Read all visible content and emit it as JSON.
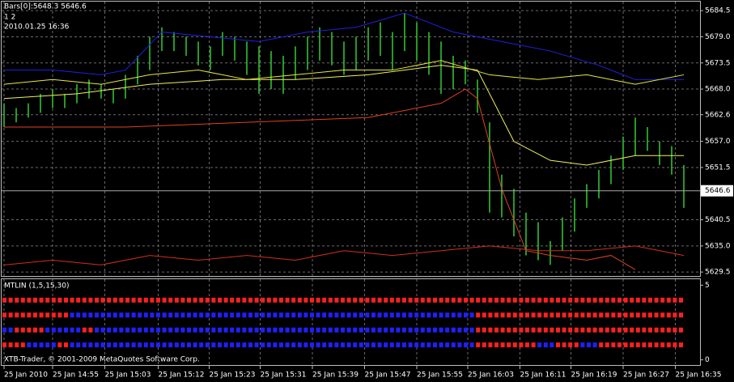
{
  "chart_data": {
    "type": "ohlc",
    "info": [
      "Bars[0]:5648.3 5646.6",
      "1 2",
      "2010.01.25 16:36"
    ],
    "footer": "XTB-Trader, © 2001-2009 MetaQuotes Software Corp.",
    "bar_color": "#33cc33",
    "high": [
      5665,
      5664,
      5665,
      5667,
      5668,
      5667,
      5669,
      5670,
      5669,
      5668,
      5671,
      5675,
      5679,
      5681,
      5680,
      5679,
      5678,
      5677,
      5680,
      5679,
      5678,
      5677,
      5676,
      5675,
      5677,
      5679,
      5681,
      5680,
      5678,
      5679,
      5681,
      5682,
      5680,
      5684,
      5682,
      5680,
      5678,
      5675,
      5674,
      5670,
      5661,
      5650,
      5647,
      5642,
      5640,
      5636,
      5641,
      5645,
      5648,
      5651,
      5654,
      5658,
      5662,
      5660,
      5657,
      5656,
      5652
    ],
    "low": [
      5660,
      5661,
      5662,
      5663,
      5664,
      5664,
      5665,
      5666,
      5666,
      5665,
      5666,
      5669,
      5672,
      5676,
      5676,
      5675,
      5673,
      5672,
      5675,
      5674,
      5671,
      5667,
      5668,
      5667,
      5670,
      5672,
      5674,
      5673,
      5671,
      5672,
      5674,
      5675,
      5672,
      5676,
      5674,
      5671,
      5667,
      5668,
      5669,
      5663,
      5642,
      5641,
      5637,
      5633,
      5632,
      5631,
      5634,
      5638,
      5643,
      5645,
      5648,
      5651,
      5654,
      5655,
      5652,
      5650,
      5643
    ],
    "lines": [
      {
        "color": "#2020e0",
        "x": [
          0,
          4,
          8,
          10,
          13,
          17,
          21,
          25,
          29,
          33,
          37,
          41,
          45,
          49,
          52,
          56
        ],
        "values": [
          5672,
          5672,
          5671,
          5672,
          5680,
          5679,
          5678,
          5680,
          5681,
          5684,
          5680,
          5678,
          5676,
          5673,
          5670,
          5670
        ]
      },
      {
        "color": "#e8e840",
        "x": [
          0,
          4,
          8,
          12,
          16,
          20,
          24,
          28,
          32,
          36,
          40,
          44,
          48,
          52,
          56
        ],
        "values": [
          5669,
          5670,
          5669,
          5671,
          5672,
          5670,
          5671,
          5672,
          5672,
          5674,
          5671,
          5670,
          5671,
          5669,
          5671
        ]
      },
      {
        "color": "#f0f060",
        "x": [
          0,
          6,
          12,
          18,
          24,
          30,
          36,
          39,
          42,
          45,
          48,
          52,
          56
        ],
        "values": [
          5666,
          5667,
          5669,
          5670,
          5670,
          5671,
          5673,
          5672,
          5657,
          5653,
          5652,
          5654,
          5654
        ]
      },
      {
        "color": "#e04020",
        "x": [
          0,
          10,
          20,
          30,
          36,
          38,
          39,
          41,
          43,
          45,
          48,
          50,
          52
        ],
        "values": [
          5660,
          5660,
          5661,
          5662,
          5665,
          5668,
          5666,
          5647,
          5634,
          5633,
          5632,
          5633,
          5630
        ]
      },
      {
        "color": "#d03018",
        "x": [
          0,
          4,
          8,
          12,
          16,
          20,
          24,
          28,
          32,
          36,
          40,
          44,
          48,
          52,
          56
        ],
        "values": [
          5631,
          5632,
          5631,
          5633,
          5632,
          5633,
          5632,
          5634,
          5633,
          5634,
          5635,
          5634,
          5634,
          5635,
          5633
        ]
      }
    ],
    "current_price": 5646.6,
    "xlim": [
      0,
      56
    ],
    "ylim": [
      5628.5,
      5686.4
    ],
    "yticks": [
      5684.5,
      {
        "value": 5679,
        "label": "5679.0"
      },
      5673.5,
      {
        "value": 5668,
        "label": "5668.0"
      },
      5662.6,
      {
        "value": 5657,
        "label": "5657.0"
      },
      5651.5,
      5640.5,
      {
        "value": 5635,
        "label": "5635.0"
      },
      5629.5
    ],
    "xticks": [
      {
        "value": 0,
        "label": "25 Jan 2010"
      },
      {
        "value": 4,
        "label": "25 Jan 14:55"
      },
      {
        "value": 8.3,
        "label": "25 Jan 15:03"
      },
      {
        "value": 12.7,
        "label": "25 Jan 15:12"
      },
      {
        "value": 16.9,
        "label": "25 Jan 15:23"
      },
      {
        "value": 21.1,
        "label": "25 Jan 15:31"
      },
      {
        "value": 25.4,
        "label": "25 Jan 15:39"
      },
      {
        "value": 29.7,
        "label": "25 Jan 15:47"
      },
      {
        "value": 34,
        "label": "25 Jan 15:55"
      },
      {
        "value": 38.2,
        "label": "25 Jan 16:03"
      },
      {
        "value": 42.5,
        "label": "25 Jan 16:11"
      },
      {
        "value": 46.7,
        "label": "25 Jan 16:19"
      },
      {
        "value": 51,
        "label": "25 Jan 16:27"
      },
      {
        "value": 55.3,
        "label": "25 Jan 16:35"
      }
    ],
    "grid": true,
    "indicator": {
      "title": "MTLIN (1,5,15,30)",
      "ylim": [
        -0.4,
        5.4
      ],
      "yticks": [
        5,
        0
      ],
      "rows": [
        {
          "level": 4,
          "runs": [
            {
              "color": "#ff2020",
              "count": 111
            }
          ]
        },
        {
          "level": 3,
          "runs": [
            {
              "color": "#ff2020",
              "count": 11
            },
            {
              "color": "#2020ff",
              "count": 66
            },
            {
              "color": "#ff2020",
              "count": 34
            }
          ]
        },
        {
          "level": 2,
          "runs": [
            {
              "color": "#2020ff",
              "count": 2
            },
            {
              "color": "#ff2020",
              "count": 5
            },
            {
              "color": "#2020ff",
              "count": 6
            },
            {
              "color": "#ff2020",
              "count": 2
            },
            {
              "color": "#2020ff",
              "count": 62
            },
            {
              "color": "#ff2020",
              "count": 34
            }
          ]
        },
        {
          "level": 1,
          "runs": [
            {
              "color": "#ff2020",
              "count": 4
            },
            {
              "color": "#2020ff",
              "count": 5
            },
            {
              "color": "#ff2020",
              "count": 2
            },
            {
              "color": "#2020ff",
              "count": 66
            },
            {
              "color": "#ff2020",
              "count": 10
            },
            {
              "color": "#2020ff",
              "count": 3
            },
            {
              "color": "#ff2020",
              "count": 4
            },
            {
              "color": "#2020ff",
              "count": 3
            },
            {
              "color": "#ff2020",
              "count": 14
            }
          ]
        }
      ]
    }
  }
}
